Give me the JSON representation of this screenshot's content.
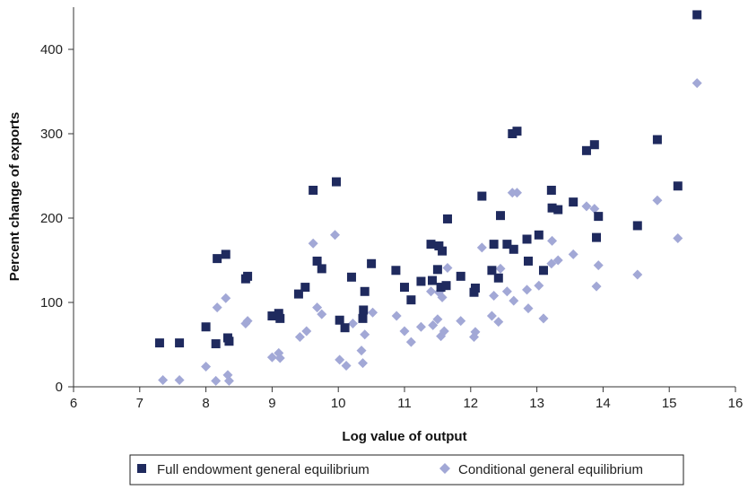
{
  "chart_data": {
    "type": "scatter",
    "title": "",
    "xlabel": "Log value of output",
    "ylabel": "Percent change of exports",
    "xlim": [
      6,
      16
    ],
    "ylim": [
      0,
      450
    ],
    "x_ticks": [
      "6",
      "7",
      "8",
      "9",
      "10",
      "11",
      "12",
      "13",
      "14",
      "15",
      "16"
    ],
    "y_ticks": [
      "0",
      "100",
      "200",
      "300",
      "400"
    ],
    "grid": false,
    "legend_position": "bottom",
    "series": [
      {
        "name": "Full endowment general equilibrium",
        "color": "#1f2a5e",
        "marker": "square",
        "points": [
          [
            7.3,
            52
          ],
          [
            7.6,
            52
          ],
          [
            8.0,
            71
          ],
          [
            8.15,
            51
          ],
          [
            8.17,
            152
          ],
          [
            8.3,
            157
          ],
          [
            8.33,
            58
          ],
          [
            8.35,
            54
          ],
          [
            8.6,
            128
          ],
          [
            8.63,
            131
          ],
          [
            9.0,
            84
          ],
          [
            9.1,
            87
          ],
          [
            9.12,
            81
          ],
          [
            9.4,
            110
          ],
          [
            9.5,
            118
          ],
          [
            9.62,
            233
          ],
          [
            9.68,
            149
          ],
          [
            9.75,
            140
          ],
          [
            9.97,
            243
          ],
          [
            10.02,
            79
          ],
          [
            10.1,
            70
          ],
          [
            10.2,
            130
          ],
          [
            10.37,
            81
          ],
          [
            10.38,
            91
          ],
          [
            10.4,
            113
          ],
          [
            10.5,
            146
          ],
          [
            10.87,
            138
          ],
          [
            11.0,
            118
          ],
          [
            11.1,
            103
          ],
          [
            11.25,
            125
          ],
          [
            11.4,
            169
          ],
          [
            11.42,
            126
          ],
          [
            11.5,
            139
          ],
          [
            11.52,
            167
          ],
          [
            11.55,
            118
          ],
          [
            11.57,
            161
          ],
          [
            11.63,
            120
          ],
          [
            11.65,
            199
          ],
          [
            11.85,
            131
          ],
          [
            12.05,
            112
          ],
          [
            12.07,
            117
          ],
          [
            12.17,
            226
          ],
          [
            12.32,
            138
          ],
          [
            12.35,
            169
          ],
          [
            12.42,
            129
          ],
          [
            12.45,
            203
          ],
          [
            12.55,
            169
          ],
          [
            12.63,
            300
          ],
          [
            12.65,
            163
          ],
          [
            12.7,
            303
          ],
          [
            12.85,
            175
          ],
          [
            12.87,
            149
          ],
          [
            13.03,
            180
          ],
          [
            13.1,
            138
          ],
          [
            13.22,
            233
          ],
          [
            13.23,
            212
          ],
          [
            13.32,
            210
          ],
          [
            13.55,
            219
          ],
          [
            13.75,
            280
          ],
          [
            13.87,
            287
          ],
          [
            13.9,
            177
          ],
          [
            13.93,
            202
          ],
          [
            14.52,
            191
          ],
          [
            14.82,
            293
          ],
          [
            15.13,
            238
          ],
          [
            15.42,
            441
          ]
        ]
      },
      {
        "name": "Conditional general equilibrium",
        "color": "#a2a8d6",
        "marker": "diamond",
        "points": [
          [
            7.35,
            8
          ],
          [
            7.6,
            8
          ],
          [
            8.0,
            24
          ],
          [
            8.15,
            7
          ],
          [
            8.17,
            94
          ],
          [
            8.3,
            105
          ],
          [
            8.33,
            14
          ],
          [
            8.35,
            7
          ],
          [
            8.6,
            75
          ],
          [
            8.63,
            78
          ],
          [
            9.0,
            35
          ],
          [
            9.1,
            40
          ],
          [
            9.12,
            34
          ],
          [
            9.42,
            59
          ],
          [
            9.52,
            66
          ],
          [
            9.62,
            170
          ],
          [
            9.68,
            94
          ],
          [
            9.75,
            86
          ],
          [
            9.95,
            180
          ],
          [
            10.02,
            32
          ],
          [
            10.12,
            25
          ],
          [
            10.22,
            75
          ],
          [
            10.35,
            43
          ],
          [
            10.37,
            28
          ],
          [
            10.4,
            62
          ],
          [
            10.52,
            88
          ],
          [
            10.88,
            84
          ],
          [
            11.0,
            66
          ],
          [
            11.1,
            53
          ],
          [
            11.25,
            71
          ],
          [
            11.4,
            113
          ],
          [
            11.43,
            73
          ],
          [
            11.5,
            80
          ],
          [
            11.52,
            112
          ],
          [
            11.55,
            60
          ],
          [
            11.57,
            106
          ],
          [
            11.6,
            66
          ],
          [
            11.65,
            141
          ],
          [
            11.85,
            78
          ],
          [
            12.05,
            59
          ],
          [
            12.07,
            65
          ],
          [
            12.17,
            165
          ],
          [
            12.32,
            84
          ],
          [
            12.35,
            108
          ],
          [
            12.42,
            77
          ],
          [
            12.45,
            140
          ],
          [
            12.55,
            113
          ],
          [
            12.63,
            230
          ],
          [
            12.65,
            102
          ],
          [
            12.7,
            230
          ],
          [
            12.85,
            115
          ],
          [
            12.87,
            93
          ],
          [
            13.03,
            120
          ],
          [
            13.1,
            81
          ],
          [
            13.22,
            146
          ],
          [
            13.23,
            173
          ],
          [
            13.32,
            150
          ],
          [
            13.55,
            157
          ],
          [
            13.75,
            214
          ],
          [
            13.87,
            211
          ],
          [
            13.9,
            119
          ],
          [
            13.93,
            144
          ],
          [
            14.52,
            133
          ],
          [
            14.82,
            221
          ],
          [
            15.13,
            176
          ],
          [
            15.42,
            360
          ]
        ]
      }
    ]
  }
}
